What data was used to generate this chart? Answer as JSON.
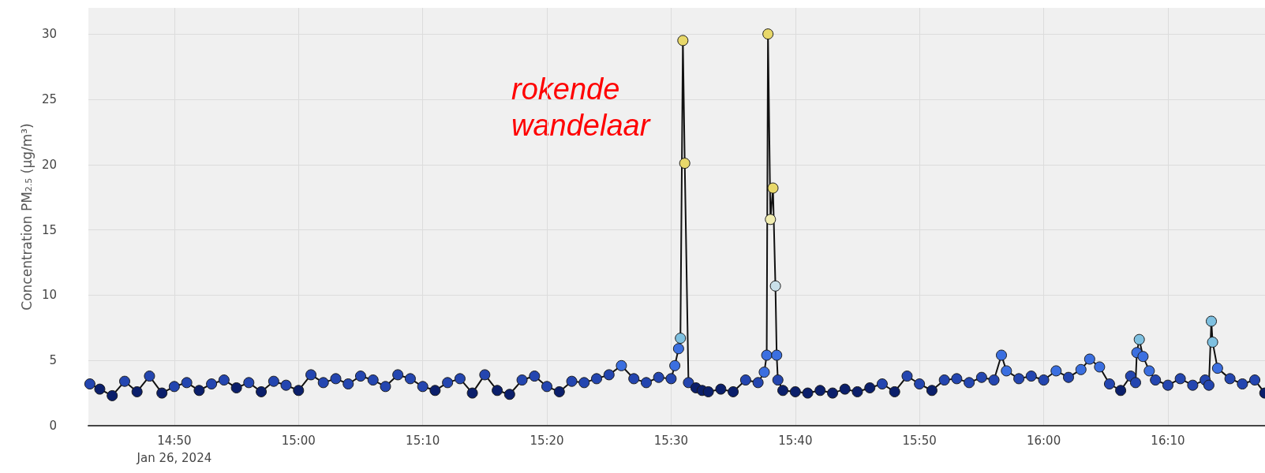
{
  "chart_data": {
    "type": "line",
    "ylabel": "Concentration PM$_{2.5}$ (µg/m³)",
    "annotations": [
      "rokende wandelaar"
    ],
    "xlim": [
      14.718,
      16.297
    ],
    "ylim": [
      0,
      32
    ],
    "yticks": [
      0,
      5,
      10,
      15,
      20,
      25,
      30
    ],
    "xticks": [
      {
        "value": 14.8333,
        "label": "14:50\nJan 26, 2024"
      },
      {
        "value": 15,
        "label": "15:00"
      },
      {
        "value": 15.1667,
        "label": "15:10"
      },
      {
        "value": 15.3333,
        "label": "15:20"
      },
      {
        "value": 15.5,
        "label": "15:30"
      },
      {
        "value": 15.6667,
        "label": "15:40"
      },
      {
        "value": 15.8333,
        "label": "15:50"
      },
      {
        "value": 16,
        "label": "16:00"
      },
      {
        "value": 16.1667,
        "label": "16:10"
      }
    ],
    "grid": true,
    "marker": "circle",
    "line_style": "solid",
    "series": [
      {
        "color": "#111111",
        "x": [
          14.72,
          14.7333,
          14.75,
          14.7667,
          14.7833,
          14.8,
          14.8167,
          14.8333,
          14.85,
          14.8667,
          14.8833,
          14.9,
          14.9167,
          14.9333,
          14.95,
          14.9667,
          14.9833,
          15,
          15.0167,
          15.0333,
          15.05,
          15.0667,
          15.0833,
          15.1,
          15.1167,
          15.1333,
          15.15,
          15.1667,
          15.1833,
          15.2,
          15.2167,
          15.2333,
          15.25,
          15.2667,
          15.2833,
          15.3,
          15.3167,
          15.3333,
          15.35,
          15.3667,
          15.3833,
          15.4,
          15.4167,
          15.4333,
          15.45,
          15.4667,
          15.4833,
          15.5,
          15.505,
          15.51,
          15.5125,
          15.5158,
          15.5183,
          15.5233,
          15.5333,
          15.5417,
          15.55,
          15.5667,
          15.5833,
          15.6,
          15.6167,
          15.625,
          15.6283,
          15.63,
          15.6333,
          15.6367,
          15.64,
          15.6417,
          15.6433,
          15.65,
          15.6667,
          15.6833,
          15.7,
          15.7167,
          15.7333,
          15.75,
          15.7667,
          15.7833,
          15.8,
          15.8167,
          15.8333,
          15.85,
          15.8667,
          15.8833,
          15.9,
          15.9167,
          15.9333,
          15.9433,
          15.95,
          15.9667,
          15.9833,
          16,
          16.0167,
          16.0333,
          16.05,
          16.0617,
          16.075,
          16.0883,
          16.1033,
          16.1167,
          16.1233,
          16.125,
          16.1283,
          16.1333,
          16.1417,
          16.15,
          16.1667,
          16.1833,
          16.2,
          16.2167,
          16.2217,
          16.225,
          16.2267,
          16.2333,
          16.25,
          16.2667,
          16.2833,
          16.2967
        ],
        "values": [
          3.2,
          2.8,
          2.3,
          3.4,
          2.6,
          3.8,
          2.5,
          3.0,
          3.3,
          2.7,
          3.2,
          3.5,
          2.9,
          3.3,
          2.6,
          3.4,
          3.1,
          2.7,
          3.9,
          3.3,
          3.6,
          3.2,
          3.8,
          3.5,
          3.0,
          3.9,
          3.6,
          3.0,
          2.7,
          3.3,
          3.6,
          2.5,
          3.9,
          2.7,
          2.4,
          3.5,
          3.8,
          3.0,
          2.6,
          3.4,
          3.3,
          3.6,
          3.9,
          4.6,
          3.6,
          3.3,
          3.7,
          3.6,
          4.6,
          5.9,
          6.7,
          29.5,
          20.1,
          3.3,
          2.9,
          2.7,
          2.6,
          2.8,
          2.6,
          3.5,
          3.3,
          4.1,
          5.4,
          30.0,
          15.8,
          18.2,
          10.7,
          5.4,
          3.5,
          2.7,
          2.6,
          2.5,
          2.7,
          2.5,
          2.8,
          2.6,
          2.9,
          3.2,
          2.6,
          3.8,
          3.2,
          2.7,
          3.5,
          3.6,
          3.3,
          3.7,
          3.5,
          5.4,
          4.2,
          3.6,
          3.8,
          3.5,
          4.2,
          3.7,
          4.3,
          5.1,
          4.5,
          3.2,
          2.7,
          3.8,
          3.3,
          5.6,
          6.6,
          5.3,
          4.2,
          3.5,
          3.1,
          3.6,
          3.1,
          3.5,
          3.1,
          8.0,
          6.4,
          4.4,
          3.6,
          3.2,
          3.5,
          2.5
        ],
        "colors": [
          "#2446b0",
          "#0b1f6b",
          "#0b1f6b",
          "#2446b0",
          "#0b1f6b",
          "#2446b0",
          "#0b1f6b",
          "#2446b0",
          "#2446b0",
          "#0b1f6b",
          "#2446b0",
          "#2446b0",
          "#0b1f6b",
          "#2446b0",
          "#0b1f6b",
          "#2446b0",
          "#2446b0",
          "#0b1f6b",
          "#2446b0",
          "#2446b0",
          "#2446b0",
          "#2446b0",
          "#2446b0",
          "#2446b0",
          "#2446b0",
          "#2446b0",
          "#2446b0",
          "#2446b0",
          "#0b1f6b",
          "#2446b0",
          "#2446b0",
          "#0b1f6b",
          "#2446b0",
          "#0b1f6b",
          "#0b1f6b",
          "#2446b0",
          "#2446b0",
          "#2446b0",
          "#0b1f6b",
          "#2446b0",
          "#2446b0",
          "#2446b0",
          "#2446b0",
          "#3b6fe0",
          "#2446b0",
          "#2446b0",
          "#2446b0",
          "#2446b0",
          "#3b6fe0",
          "#3b6fe0",
          "#7ec0e0",
          "#e8d86a",
          "#e8d86a",
          "#2446b0",
          "#0b1f6b",
          "#0b1f6b",
          "#0b1f6b",
          "#0b1f6b",
          "#0b1f6b",
          "#2446b0",
          "#2446b0",
          "#3b6fe0",
          "#3b6fe0",
          "#e8d86a",
          "#f0ecb0",
          "#e8d86a",
          "#c9e0ea",
          "#3b6fe0",
          "#2446b0",
          "#0b1f6b",
          "#0b1f6b",
          "#0b1f6b",
          "#0b1f6b",
          "#0b1f6b",
          "#0b1f6b",
          "#0b1f6b",
          "#0b1f6b",
          "#2446b0",
          "#0b1f6b",
          "#2446b0",
          "#2446b0",
          "#0b1f6b",
          "#2446b0",
          "#2446b0",
          "#2446b0",
          "#2446b0",
          "#2446b0",
          "#3b6fe0",
          "#3b6fe0",
          "#2446b0",
          "#2446b0",
          "#2446b0",
          "#3b6fe0",
          "#2446b0",
          "#3b6fe0",
          "#3b6fe0",
          "#3b6fe0",
          "#2446b0",
          "#0b1f6b",
          "#2446b0",
          "#2446b0",
          "#3b6fe0",
          "#7ec0e0",
          "#3b6fe0",
          "#3b6fe0",
          "#2446b0",
          "#2446b0",
          "#2446b0",
          "#2446b0",
          "#2446b0",
          "#2446b0",
          "#7ec0e0",
          "#7ec0e0",
          "#3b6fe0",
          "#2446b0",
          "#2446b0",
          "#2446b0",
          "#0b1f6b"
        ]
      }
    ]
  }
}
